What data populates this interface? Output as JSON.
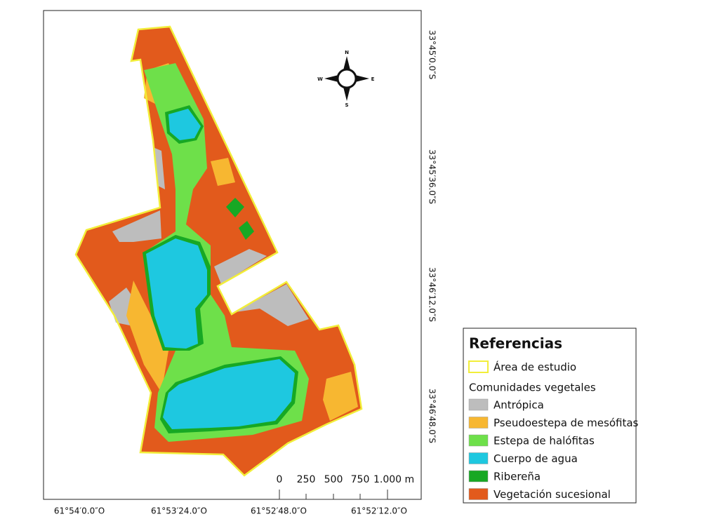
{
  "map": {
    "lon_labels": [
      "61°54′0.0″O",
      "61°53′24.0″O",
      "61°52′48.0″O",
      "61°52′12.0″O"
    ],
    "lat_labels": [
      "33°45′0.0″S",
      "33°45′36.0″S",
      "33°46′12.0″S",
      "33°46′48.0″S"
    ],
    "scale_bar": [
      "0",
      "250",
      "500",
      "750",
      "1.000 m"
    ],
    "compass": {
      "n": "N",
      "s": "S",
      "w": "W",
      "e": "E"
    }
  },
  "legend": {
    "title": "Referencias",
    "boundary": {
      "label": "Área de estudio",
      "color": "#f2ee3a"
    },
    "group": "Comunidades vegetales",
    "items": [
      {
        "label": "Antrópica",
        "color": "#bdbdbd"
      },
      {
        "label": "Pseudoestepa de mesófitas",
        "color": "#f7b731"
      },
      {
        "label": "Estepa de halófitas",
        "color": "#6ee04a"
      },
      {
        "label": "Cuerpo de agua",
        "color": "#1ec8e0"
      },
      {
        "label": "Ribereña",
        "color": "#17a824"
      },
      {
        "label": "Vegetación sucesional",
        "color": "#e25a1c"
      }
    ]
  }
}
